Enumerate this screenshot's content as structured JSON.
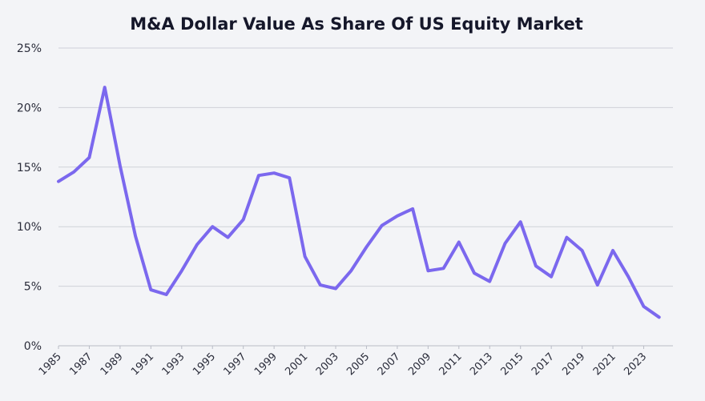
{
  "colors": {
    "background": "#f3f4f7",
    "series": "#7b68ee",
    "grid": "#cfd1d8",
    "text": "#15172a"
  },
  "chart_data": {
    "type": "line",
    "title": "M&A Dollar Value As Share Of US Equity Market",
    "xlabel": "",
    "ylabel": "",
    "ylim": [
      0,
      25
    ],
    "yticks": [
      0,
      5,
      10,
      15,
      20,
      25
    ],
    "ytick_labels": [
      "0%",
      "5%",
      "10%",
      "15%",
      "20%",
      "25%"
    ],
    "xtick_labels": [
      "1985",
      "1987",
      "1989",
      "1991",
      "1993",
      "1995",
      "1997",
      "1999",
      "2001",
      "2003",
      "2005",
      "2007",
      "2009",
      "2011",
      "2013",
      "2015",
      "2017",
      "2019",
      "2021",
      "2023"
    ],
    "grid": true,
    "legend": "none",
    "series": [
      {
        "name": "M&A Dollar Value As Share Of US Equity Market",
        "x": [
          1985,
          1986,
          1987,
          1988,
          1989,
          1990,
          1991,
          1992,
          1993,
          1994,
          1995,
          1996,
          1997,
          1998,
          1999,
          2000,
          2001,
          2002,
          2003,
          2004,
          2005,
          2006,
          2007,
          2008,
          2009,
          2010,
          2011,
          2012,
          2013,
          2014,
          2015,
          2016,
          2017,
          2018,
          2019,
          2020,
          2021,
          2022,
          2023,
          2024
        ],
        "values": [
          13.8,
          14.6,
          15.8,
          21.7,
          15.1,
          9.2,
          4.7,
          4.3,
          6.3,
          8.5,
          10.0,
          9.1,
          10.6,
          14.3,
          14.5,
          14.1,
          7.5,
          5.1,
          4.8,
          6.3,
          8.3,
          10.1,
          10.9,
          11.5,
          6.3,
          6.5,
          8.7,
          6.1,
          5.4,
          8.6,
          10.4,
          6.7,
          5.8,
          9.1,
          8.0,
          5.1,
          8.0,
          5.8,
          3.3,
          2.4
        ]
      }
    ]
  }
}
